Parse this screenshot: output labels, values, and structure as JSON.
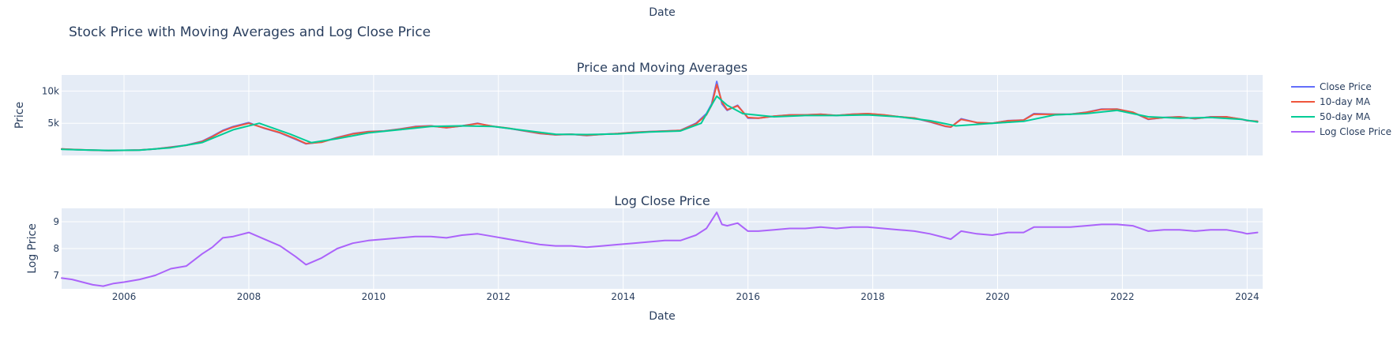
{
  "chart_data": {
    "type": "line",
    "title": "Stock Price with Moving Averages and Log Close Price",
    "top_axis_label": "Date",
    "xlabel": "Date",
    "x_ticks": [
      "2006",
      "2008",
      "2010",
      "2012",
      "2014",
      "2016",
      "2018",
      "2020",
      "2022",
      "2024"
    ],
    "xlim": [
      "2005-01-01",
      "2024-03-31"
    ],
    "grid": true,
    "legend_position": "right",
    "legend": [
      {
        "name": "Close Price",
        "color": "#636efa"
      },
      {
        "name": "10-day MA",
        "color": "#EF553B"
      },
      {
        "name": "50-day MA",
        "color": "#00cc96"
      },
      {
        "name": "Log Close Price",
        "color": "#ab63fa"
      }
    ],
    "subplots": [
      {
        "title": "Price and Moving Averages",
        "ylabel": "Price",
        "ylim": [
          0,
          12500
        ],
        "y_ticks": [
          {
            "value": 5000,
            "label": "5k"
          },
          {
            "value": 10000,
            "label": "10k"
          }
        ],
        "series": [
          {
            "name": "Close Price",
            "color": "#636efa",
            "x": [
              "2005-01",
              "2005-04",
              "2005-07",
              "2005-10",
              "2006-01",
              "2006-04",
              "2006-07",
              "2006-10",
              "2007-01",
              "2007-04",
              "2007-06",
              "2007-08",
              "2007-10",
              "2008-01",
              "2008-04",
              "2008-07",
              "2008-10",
              "2008-12",
              "2009-03",
              "2009-06",
              "2009-09",
              "2009-12",
              "2010-03",
              "2010-06",
              "2010-09",
              "2010-12",
              "2011-03",
              "2011-06",
              "2011-09",
              "2011-12",
              "2012-03",
              "2012-06",
              "2012-09",
              "2012-12",
              "2013-03",
              "2013-06",
              "2013-09",
              "2013-12",
              "2014-03",
              "2014-06",
              "2014-09",
              "2014-12",
              "2015-03",
              "2015-05",
              "2015-06",
              "2015-07",
              "2015-08",
              "2015-09",
              "2015-11",
              "2016-01",
              "2016-03",
              "2016-06",
              "2016-09",
              "2016-12",
              "2017-03",
              "2017-06",
              "2017-09",
              "2017-12",
              "2018-03",
              "2018-06",
              "2018-09",
              "2018-12",
              "2019-03",
              "2019-04",
              "2019-06",
              "2019-09",
              "2019-12",
              "2020-03",
              "2020-06",
              "2020-08",
              "2020-12",
              "2021-03",
              "2021-06",
              "2021-09",
              "2021-12",
              "2022-03",
              "2022-06",
              "2022-09",
              "2022-12",
              "2023-03",
              "2023-06",
              "2023-09",
              "2023-12",
              "2024-01",
              "2024-03"
            ],
            "values": [
              1000,
              900,
              820,
              750,
              800,
              850,
              1000,
              1300,
              1600,
              2200,
              3000,
              3900,
              4500,
              5100,
              4200,
              3500,
              2500,
              1800,
              2100,
              2800,
              3400,
              3700,
              3800,
              4100,
              4500,
              4600,
              4300,
              4600,
              5000,
              4500,
              4200,
              3800,
              3400,
              3200,
              3300,
              3100,
              3300,
              3400,
              3600,
              3700,
              3800,
              3900,
              5000,
              6500,
              8000,
              11500,
              8000,
              7000,
              7800,
              5800,
              5800,
              6100,
              6300,
              6300,
              6400,
              6200,
              6400,
              6500,
              6300,
              6000,
              5800,
              5200,
              4500,
              4400,
              5700,
              5100,
              5000,
              5400,
              5500,
              6500,
              6400,
              6400,
              6700,
              7200,
              7200,
              6700,
              5600,
              5900,
              6000,
              5700,
              6000,
              6000,
              5600,
              5400,
              5300
            ]
          },
          {
            "name": "10-day MA",
            "color": "#EF553B",
            "x": [
              "2005-01",
              "2005-04",
              "2005-07",
              "2005-10",
              "2006-01",
              "2006-04",
              "2006-07",
              "2006-10",
              "2007-01",
              "2007-04",
              "2007-06",
              "2007-08",
              "2007-10",
              "2008-01",
              "2008-04",
              "2008-07",
              "2008-10",
              "2008-12",
              "2009-03",
              "2009-06",
              "2009-09",
              "2009-12",
              "2010-03",
              "2010-06",
              "2010-09",
              "2010-12",
              "2011-03",
              "2011-06",
              "2011-09",
              "2011-12",
              "2012-03",
              "2012-06",
              "2012-09",
              "2012-12",
              "2013-03",
              "2013-06",
              "2013-09",
              "2013-12",
              "2014-03",
              "2014-06",
              "2014-09",
              "2014-12",
              "2015-03",
              "2015-05",
              "2015-06",
              "2015-07",
              "2015-08",
              "2015-09",
              "2015-11",
              "2016-01",
              "2016-03",
              "2016-06",
              "2016-09",
              "2016-12",
              "2017-03",
              "2017-06",
              "2017-09",
              "2017-12",
              "2018-03",
              "2018-06",
              "2018-09",
              "2018-12",
              "2019-03",
              "2019-04",
              "2019-06",
              "2019-09",
              "2019-12",
              "2020-03",
              "2020-06",
              "2020-08",
              "2020-12",
              "2021-03",
              "2021-06",
              "2021-09",
              "2021-12",
              "2022-03",
              "2022-06",
              "2022-09",
              "2022-12",
              "2023-03",
              "2023-06",
              "2023-09",
              "2023-12",
              "2024-01",
              "2024-03"
            ],
            "values": [
              1000,
              910,
              830,
              760,
              800,
              850,
              1000,
              1280,
              1580,
              2150,
              2900,
              3800,
              4400,
              5000,
              4250,
              3550,
              2600,
              1850,
              2050,
              2750,
              3350,
              3680,
              3790,
              4080,
              4450,
              4580,
              4320,
              4580,
              4950,
              4520,
              4230,
              3820,
              3430,
              3220,
              3300,
              3120,
              3290,
              3400,
              3590,
              3690,
              3790,
              3890,
              4900,
              6300,
              7800,
              11000,
              8300,
              7100,
              7700,
              5900,
              5800,
              6100,
              6290,
              6300,
              6390,
              6210,
              6390,
              6490,
              6310,
              6020,
              5820,
              5250,
              4550,
              4420,
              5600,
              5120,
              5010,
              5380,
              5490,
              6400,
              6390,
              6400,
              6680,
              7150,
              7180,
              6720,
              5650,
              5880,
              5990,
              5720,
              5980,
              5990,
              5620,
              5420,
              5310
            ]
          },
          {
            "name": "50-day MA",
            "color": "#00cc96",
            "x": [
              "2005-01",
              "2005-06",
              "2005-10",
              "2006-04",
              "2006-10",
              "2007-04",
              "2007-10",
              "2008-03",
              "2008-09",
              "2009-01",
              "2009-06",
              "2009-12",
              "2010-06",
              "2010-12",
              "2011-06",
              "2011-12",
              "2012-06",
              "2012-12",
              "2013-06",
              "2013-12",
              "2014-06",
              "2014-12",
              "2015-04",
              "2015-07",
              "2015-09",
              "2015-12",
              "2016-06",
              "2016-12",
              "2017-06",
              "2017-12",
              "2018-06",
              "2018-12",
              "2019-05",
              "2019-12",
              "2020-06",
              "2020-12",
              "2021-06",
              "2021-12",
              "2022-06",
              "2022-12",
              "2023-06",
              "2023-12",
              "2024-03"
            ],
            "values": [
              950,
              850,
              780,
              830,
              1200,
              2000,
              4000,
              5000,
              3300,
              2000,
              2600,
              3500,
              4000,
              4500,
              4600,
              4500,
              3900,
              3300,
              3250,
              3350,
              3650,
              3800,
              5000,
              9200,
              7800,
              6500,
              6000,
              6200,
              6200,
              6300,
              6000,
              5400,
              4600,
              5000,
              5300,
              6300,
              6500,
              7000,
              6000,
              5800,
              5900,
              5600,
              5200
            ]
          }
        ]
      },
      {
        "title": "Log Close Price",
        "ylabel": "Log Price",
        "ylim": [
          6.5,
          9.5
        ],
        "y_ticks": [
          {
            "value": 7,
            "label": "7"
          },
          {
            "value": 8,
            "label": "8"
          },
          {
            "value": 9,
            "label": "9"
          }
        ],
        "series": [
          {
            "name": "Log Close Price",
            "color": "#ab63fa",
            "x": [
              "2005-01",
              "2005-03",
              "2005-05",
              "2005-07",
              "2005-09",
              "2005-11",
              "2006-01",
              "2006-04",
              "2006-07",
              "2006-10",
              "2007-01",
              "2007-04",
              "2007-06",
              "2007-08",
              "2007-10",
              "2008-01",
              "2008-04",
              "2008-07",
              "2008-10",
              "2008-12",
              "2009-03",
              "2009-06",
              "2009-09",
              "2009-12",
              "2010-03",
              "2010-06",
              "2010-09",
              "2010-12",
              "2011-03",
              "2011-06",
              "2011-09",
              "2011-12",
              "2012-03",
              "2012-06",
              "2012-09",
              "2012-12",
              "2013-03",
              "2013-06",
              "2013-09",
              "2013-12",
              "2014-03",
              "2014-06",
              "2014-09",
              "2014-12",
              "2015-03",
              "2015-05",
              "2015-06",
              "2015-07",
              "2015-08",
              "2015-09",
              "2015-11",
              "2016-01",
              "2016-03",
              "2016-06",
              "2016-09",
              "2016-12",
              "2017-03",
              "2017-06",
              "2017-09",
              "2017-12",
              "2018-03",
              "2018-06",
              "2018-09",
              "2018-12",
              "2019-03",
              "2019-04",
              "2019-06",
              "2019-09",
              "2019-12",
              "2020-03",
              "2020-06",
              "2020-08",
              "2020-12",
              "2021-03",
              "2021-06",
              "2021-09",
              "2021-12",
              "2022-03",
              "2022-06",
              "2022-09",
              "2022-12",
              "2023-03",
              "2023-06",
              "2023-09",
              "2023-12",
              "2024-01",
              "2024-03"
            ],
            "values": [
              6.9,
              6.85,
              6.75,
              6.65,
              6.6,
              6.7,
              6.75,
              6.85,
              7.0,
              7.25,
              7.35,
              7.8,
              8.05,
              8.4,
              8.45,
              8.6,
              8.35,
              8.1,
              7.7,
              7.4,
              7.65,
              8.0,
              8.2,
              8.3,
              8.35,
              8.4,
              8.45,
              8.45,
              8.4,
              8.5,
              8.55,
              8.45,
              8.35,
              8.25,
              8.15,
              8.1,
              8.1,
              8.05,
              8.1,
              8.15,
              8.2,
              8.25,
              8.3,
              8.3,
              8.5,
              8.75,
              9.05,
              9.35,
              8.9,
              8.85,
              8.95,
              8.65,
              8.65,
              8.7,
              8.75,
              8.75,
              8.8,
              8.75,
              8.8,
              8.8,
              8.75,
              8.7,
              8.65,
              8.55,
              8.4,
              8.35,
              8.65,
              8.55,
              8.5,
              8.6,
              8.6,
              8.8,
              8.8,
              8.8,
              8.85,
              8.9,
              8.9,
              8.85,
              8.65,
              8.7,
              8.7,
              8.65,
              8.7,
              8.7,
              8.6,
              8.55,
              8.6
            ]
          }
        ]
      }
    ]
  }
}
